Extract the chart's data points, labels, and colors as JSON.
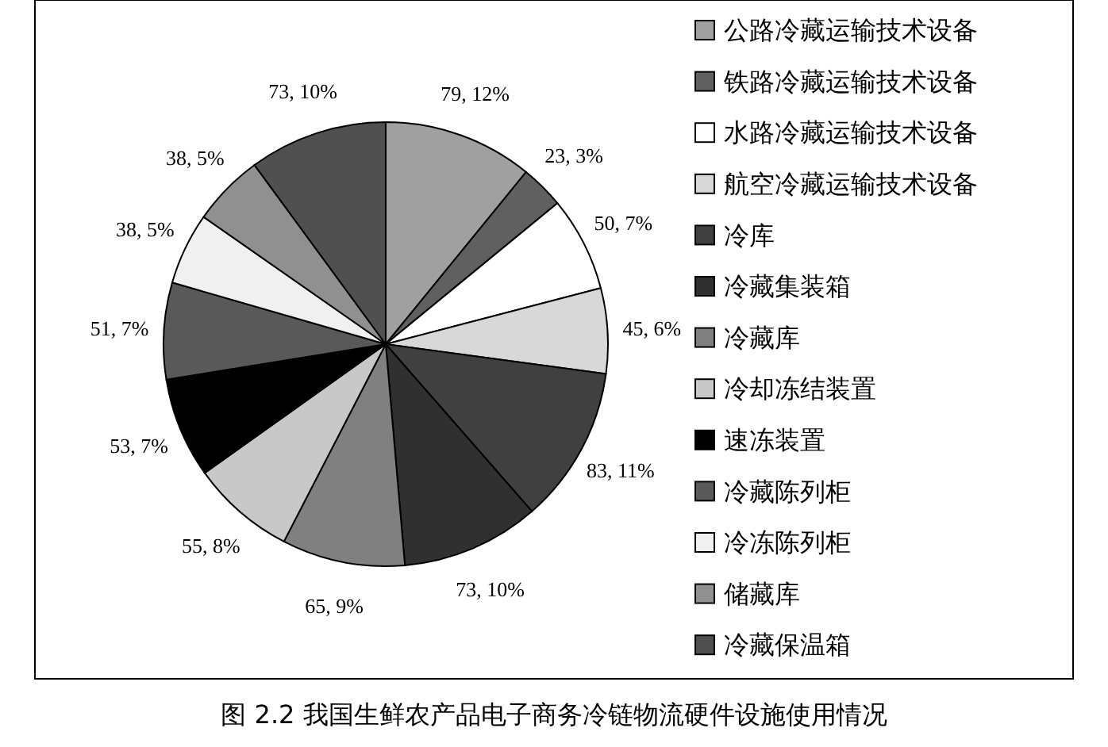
{
  "chart_data": {
    "type": "pie",
    "title": "图 2.2  我国生鲜农产品电子商务冷链物流硬件设施使用情况",
    "categories": [
      "公路冷藏运输技术设备",
      "铁路冷藏运输技术设备",
      "水路冷藏运输技术设备",
      "航空冷藏运输技术设备",
      "冷库",
      "冷藏集装箱",
      "冷藏库",
      "冷却冻结装置",
      "速冻装置",
      "冷藏陈列柜",
      "冷冻陈列柜",
      "储藏库",
      "冷藏保温箱"
    ],
    "values": [
      79,
      23,
      50,
      45,
      83,
      73,
      65,
      55,
      53,
      51,
      38,
      38,
      73
    ],
    "value_labels": [
      "79, 12%",
      "23, 3%",
      "50, 7%",
      "45, 6%",
      "83, 11%",
      "73, 10%",
      "65, 9%",
      "55, 8%",
      "53, 7%",
      "51, 7%",
      "38, 5%",
      "38, 5%",
      "73, 10%"
    ],
    "colors": [
      "#a0a0a0",
      "#606060",
      "#ffffff",
      "#d8d8d8",
      "#404040",
      "#303030",
      "#808080",
      "#c8c8c8",
      "#000000",
      "#595959",
      "#f0f0f0",
      "#909090",
      "#505050"
    ],
    "legend": "right"
  }
}
